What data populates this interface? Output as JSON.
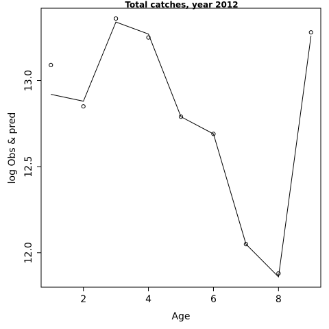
{
  "chart_data": {
    "type": "line",
    "title": "Total catches, year 2012",
    "xlabel": "Age",
    "ylabel": "log Obs & pred",
    "xlim": [
      0.7,
      9.3
    ],
    "ylim": [
      11.8,
      13.42
    ],
    "x_ticks": [
      2,
      4,
      6,
      8
    ],
    "y_ticks": [
      12.0,
      12.5,
      13.0
    ],
    "x_tick_labels": [
      "2",
      "4",
      "6",
      "8"
    ],
    "y_tick_labels": [
      "12.0",
      "12.5",
      "13.0"
    ],
    "grid": false,
    "series": [
      {
        "style": "points",
        "marker": "open-circle",
        "x": [
          1,
          2,
          3,
          4,
          5,
          6,
          7,
          8,
          9
        ],
        "y": [
          13.09,
          12.85,
          13.36,
          13.25,
          12.79,
          12.69,
          12.05,
          11.88,
          13.28
        ]
      },
      {
        "style": "line",
        "x": [
          1,
          2,
          3,
          4,
          5,
          6,
          7,
          8,
          9
        ],
        "y": [
          12.92,
          12.88,
          13.34,
          13.27,
          12.79,
          12.69,
          12.05,
          11.86,
          13.26
        ]
      }
    ]
  }
}
